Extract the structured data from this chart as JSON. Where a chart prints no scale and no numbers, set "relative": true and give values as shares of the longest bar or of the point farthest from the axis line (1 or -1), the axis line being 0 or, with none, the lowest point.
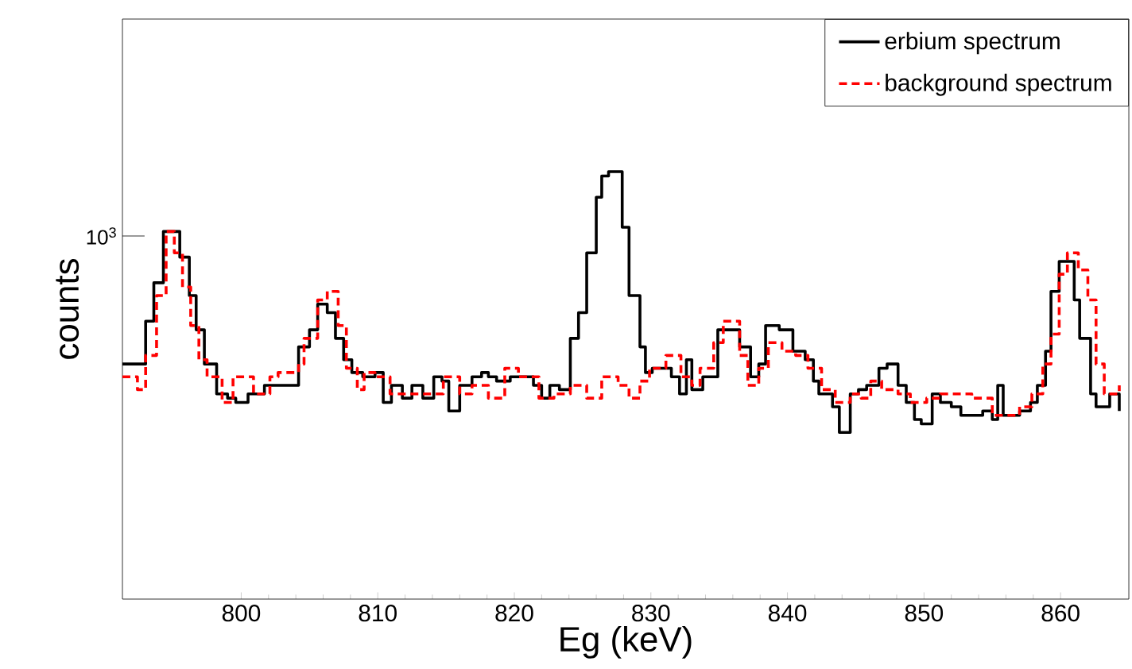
{
  "chart_data": {
    "type": "step",
    "relative": true,
    "xlabel": "Eg (keV)",
    "ylabel": "counts",
    "xlim": [
      791.3,
      865
    ],
    "xticks": [
      800,
      810,
      820,
      830,
      840,
      850,
      860
    ],
    "legend": "top right",
    "grid": false,
    "annotations": [
      "10$^{3}$"
    ],
    "series": [
      {
        "name": "erbium spectrum",
        "color": "#000000",
        "line_style": "solid",
        "x": [
          791.3,
          793.0,
          793.6,
          794.3,
          795.5,
          796.2,
          796.7,
          797.3,
          798.2,
          799.0,
          799.6,
          800.5,
          801.7,
          802.7,
          804.2,
          805.0,
          805.6,
          806.3,
          806.9,
          807.5,
          808.1,
          808.9,
          809.8,
          810.4,
          811.0,
          811.8,
          812.5,
          813.3,
          814.1,
          814.7,
          815.2,
          816.0,
          816.4,
          816.9,
          817.6,
          818.1,
          818.7,
          819.7,
          820.3,
          821.4,
          822.0,
          822.6,
          823.3,
          824.1,
          824.7,
          825.3,
          826.0,
          826.4,
          826.9,
          827.9,
          828.4,
          829.2,
          829.6,
          830.1,
          830.7,
          831.5,
          832.1,
          832.6,
          833.0,
          833.8,
          834.9,
          835.7,
          836.5,
          837.3,
          837.9,
          838.4,
          839.4,
          840.4,
          841.3,
          841.9,
          842.3,
          843.3,
          843.8,
          844.6,
          845.2,
          845.8,
          846.7,
          847.3,
          848.1,
          848.7,
          849.3,
          849.8,
          850.6,
          851.2,
          852.0,
          852.7,
          854.3,
          855.0,
          855.4,
          855.8,
          857.0,
          857.8,
          858.3,
          858.9,
          859.3,
          859.9,
          861.0,
          861.4,
          862.2,
          862.6,
          863.6,
          864.3
        ],
        "values": [
          0.55,
          0.65,
          0.74,
          0.86,
          0.8,
          0.71,
          0.63,
          0.55,
          0.48,
          0.47,
          0.46,
          0.48,
          0.5,
          0.5,
          0.59,
          0.63,
          0.69,
          0.67,
          0.61,
          0.56,
          0.53,
          0.52,
          0.53,
          0.46,
          0.5,
          0.47,
          0.5,
          0.47,
          0.52,
          0.51,
          0.44,
          0.5,
          0.5,
          0.52,
          0.53,
          0.52,
          0.51,
          0.52,
          0.52,
          0.5,
          0.47,
          0.5,
          0.49,
          0.61,
          0.67,
          0.81,
          0.94,
          0.99,
          1.0,
          0.87,
          0.71,
          0.59,
          0.53,
          0.54,
          0.54,
          0.52,
          0.48,
          0.56,
          0.49,
          0.52,
          0.63,
          0.63,
          0.59,
          0.52,
          0.55,
          0.64,
          0.63,
          0.58,
          0.56,
          0.51,
          0.48,
          0.45,
          0.39,
          0.48,
          0.49,
          0.5,
          0.54,
          0.55,
          0.5,
          0.46,
          0.42,
          0.41,
          0.48,
          0.46,
          0.45,
          0.43,
          0.44,
          0.42,
          0.5,
          0.43,
          0.44,
          0.46,
          0.5,
          0.58,
          0.72,
          0.79,
          0.7,
          0.61,
          0.48,
          0.45,
          0.48,
          0.44
        ]
      },
      {
        "name": "background spectrum",
        "color": "#ff0000",
        "line_style": "dashed",
        "x": [
          791.3,
          792.4,
          793.0,
          793.8,
          794.5,
          795.1,
          795.7,
          796.3,
          796.9,
          797.5,
          798.6,
          799.4,
          800.9,
          802.1,
          802.7,
          804.2,
          804.6,
          805.6,
          806.3,
          807.1,
          807.7,
          808.5,
          809.0,
          809.8,
          810.9,
          812.5,
          814.8,
          816.0,
          816.9,
          818.1,
          819.3,
          820.3,
          821.8,
          822.9,
          824.1,
          825.3,
          826.4,
          827.6,
          828.4,
          829.2,
          829.9,
          831.1,
          832.2,
          833.0,
          833.6,
          834.6,
          835.3,
          836.5,
          837.1,
          837.9,
          838.6,
          839.6,
          840.6,
          841.5,
          842.5,
          843.5,
          844.6,
          845.4,
          846.1,
          846.9,
          848.1,
          849.0,
          850.2,
          851.2,
          852.3,
          853.5,
          855.0,
          857.0,
          857.9,
          858.7,
          859.3,
          859.9,
          860.5,
          861.3,
          862.0,
          862.6,
          863.2,
          864.3
        ],
        "values": [
          0.52,
          0.49,
          0.57,
          0.71,
          0.86,
          0.81,
          0.73,
          0.64,
          0.56,
          0.52,
          0.46,
          0.52,
          0.48,
          0.52,
          0.53,
          0.55,
          0.61,
          0.7,
          0.72,
          0.64,
          0.54,
          0.49,
          0.53,
          0.52,
          0.48,
          0.48,
          0.52,
          0.48,
          0.5,
          0.47,
          0.54,
          0.52,
          0.47,
          0.48,
          0.5,
          0.47,
          0.52,
          0.5,
          0.47,
          0.51,
          0.54,
          0.57,
          0.52,
          0.5,
          0.54,
          0.6,
          0.65,
          0.57,
          0.5,
          0.54,
          0.6,
          0.58,
          0.57,
          0.54,
          0.49,
          0.46,
          0.48,
          0.47,
          0.51,
          0.49,
          0.48,
          0.46,
          0.47,
          0.48,
          0.48,
          0.47,
          0.43,
          0.45,
          0.48,
          0.55,
          0.62,
          0.76,
          0.81,
          0.77,
          0.7,
          0.55,
          0.48,
          0.5
        ]
      }
    ]
  }
}
